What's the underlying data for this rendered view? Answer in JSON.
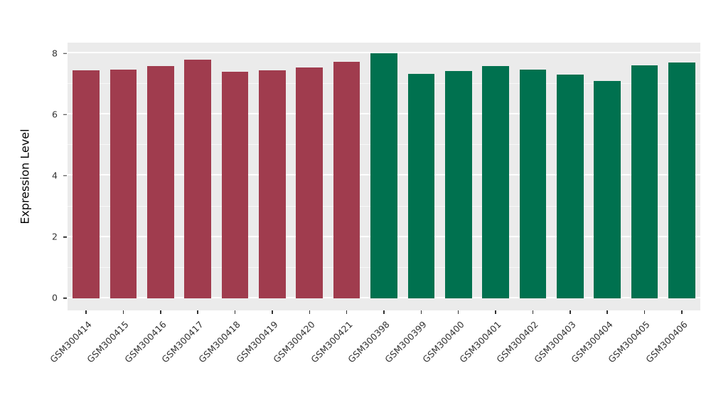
{
  "chart_data": {
    "type": "bar",
    "title": "",
    "xlabel": "",
    "ylabel": "Expression Level",
    "ylim": [
      0,
      8
    ],
    "yticks_major": [
      0,
      2,
      4,
      6,
      8
    ],
    "yticks_minor": [
      1,
      3,
      5,
      7
    ],
    "grid": "on",
    "legend_position": "none",
    "panel_background": "#EBEBEB",
    "gridline_color": "#FFFFFF",
    "axis_text_color": "#333333",
    "categories": [
      "GSM300414",
      "GSM300415",
      "GSM300416",
      "GSM300417",
      "GSM300418",
      "GSM300419",
      "GSM300420",
      "GSM300421",
      "GSM300398",
      "GSM300399",
      "GSM300400",
      "GSM300401",
      "GSM300402",
      "GSM300403",
      "GSM300404",
      "GSM300405",
      "GSM300406"
    ],
    "values": [
      7.45,
      7.47,
      7.58,
      7.8,
      7.4,
      7.45,
      7.53,
      7.72,
      8.0,
      7.33,
      7.42,
      7.58,
      7.47,
      7.3,
      7.1,
      7.6,
      7.7
    ],
    "groups": [
      "maroon",
      "maroon",
      "maroon",
      "maroon",
      "maroon",
      "maroon",
      "maroon",
      "maroon",
      "green",
      "green",
      "green",
      "green",
      "green",
      "green",
      "green",
      "green",
      "green"
    ],
    "group_colors": {
      "maroon": "#A03C4E",
      "green": "#00714F"
    }
  }
}
